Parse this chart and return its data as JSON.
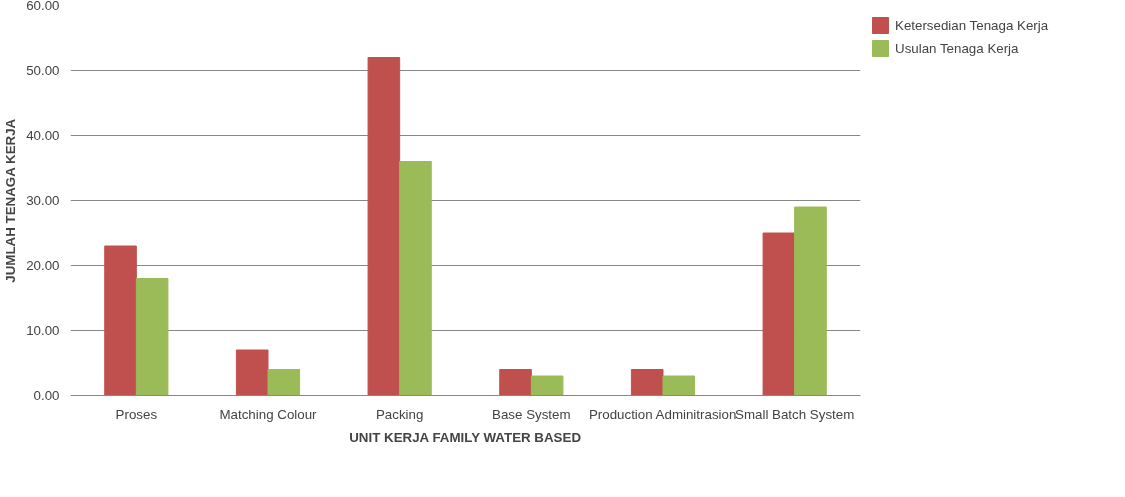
{
  "chart_data": {
    "type": "bar",
    "xlabel": "UNIT KERJA FAMILY WATER BASED",
    "ylabel": "JUMLAH TENAGA KERJA",
    "categories": [
      "Proses",
      "Matching Colour",
      "Packing",
      "Base System",
      "Production Adminitrasion",
      "Small Batch System"
    ],
    "series": [
      {
        "name": "Ketersedian Tenaga Kerja",
        "color": "#c0504d",
        "values": [
          23,
          7,
          52,
          4,
          4,
          25
        ]
      },
      {
        "name": "Usulan Tenaga Kerja",
        "color": "#9bbb59",
        "values": [
          18,
          4,
          36,
          3,
          3,
          29
        ]
      }
    ],
    "ylim": [
      0,
      60
    ],
    "yticks": [
      {
        "value": 0,
        "label": "0.00"
      },
      {
        "value": 10,
        "label": "10.00"
      },
      {
        "value": 20,
        "label": "20.00"
      },
      {
        "value": 30,
        "label": "30.00"
      },
      {
        "value": 40,
        "label": "40.00"
      },
      {
        "value": 50,
        "label": "50.00"
      },
      {
        "value": 60,
        "label": "60.00"
      }
    ],
    "grid": "y",
    "legend": "right"
  }
}
